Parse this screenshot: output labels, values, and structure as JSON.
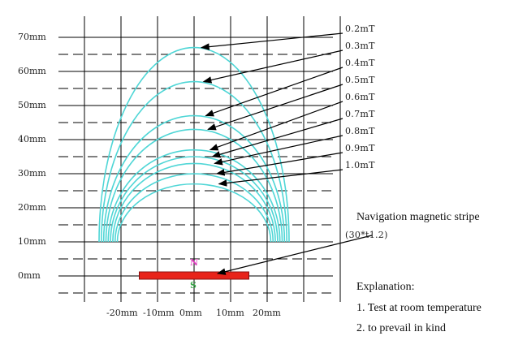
{
  "y_axis_labels": [
    "70mm",
    "60mm",
    "50mm",
    "40mm",
    "30mm",
    "20mm",
    "10mm",
    "0mm"
  ],
  "x_axis_labels": [
    "-20mm",
    "-10mm",
    "0mm",
    "10mm",
    "20mm"
  ],
  "field_labels": [
    "0.2mT",
    "0.3mT",
    "0.4mT",
    "0.5mT",
    "0.6mT",
    "0.7mT",
    "0.8mT",
    "0.9mT",
    "1.0mT"
  ],
  "field_peak_heights_mm": [
    67,
    57,
    47,
    43,
    37,
    35,
    33,
    30,
    27
  ],
  "stripe": {
    "title": "Navigation magnetic stripe",
    "size": "(30*t1.2)",
    "pole_north": "N",
    "pole_south": "S",
    "width_mm": 30
  },
  "explanation": {
    "heading": "Explanation:",
    "items": [
      "1. Test at room temperature",
      "2. to prevail in kind"
    ]
  },
  "colors": {
    "curve": "#4fd6d6",
    "stripe": "#e8231a",
    "north": "#e040c0",
    "south": "#3aa84a",
    "grid": "#000000",
    "arrow": "#000000"
  }
}
